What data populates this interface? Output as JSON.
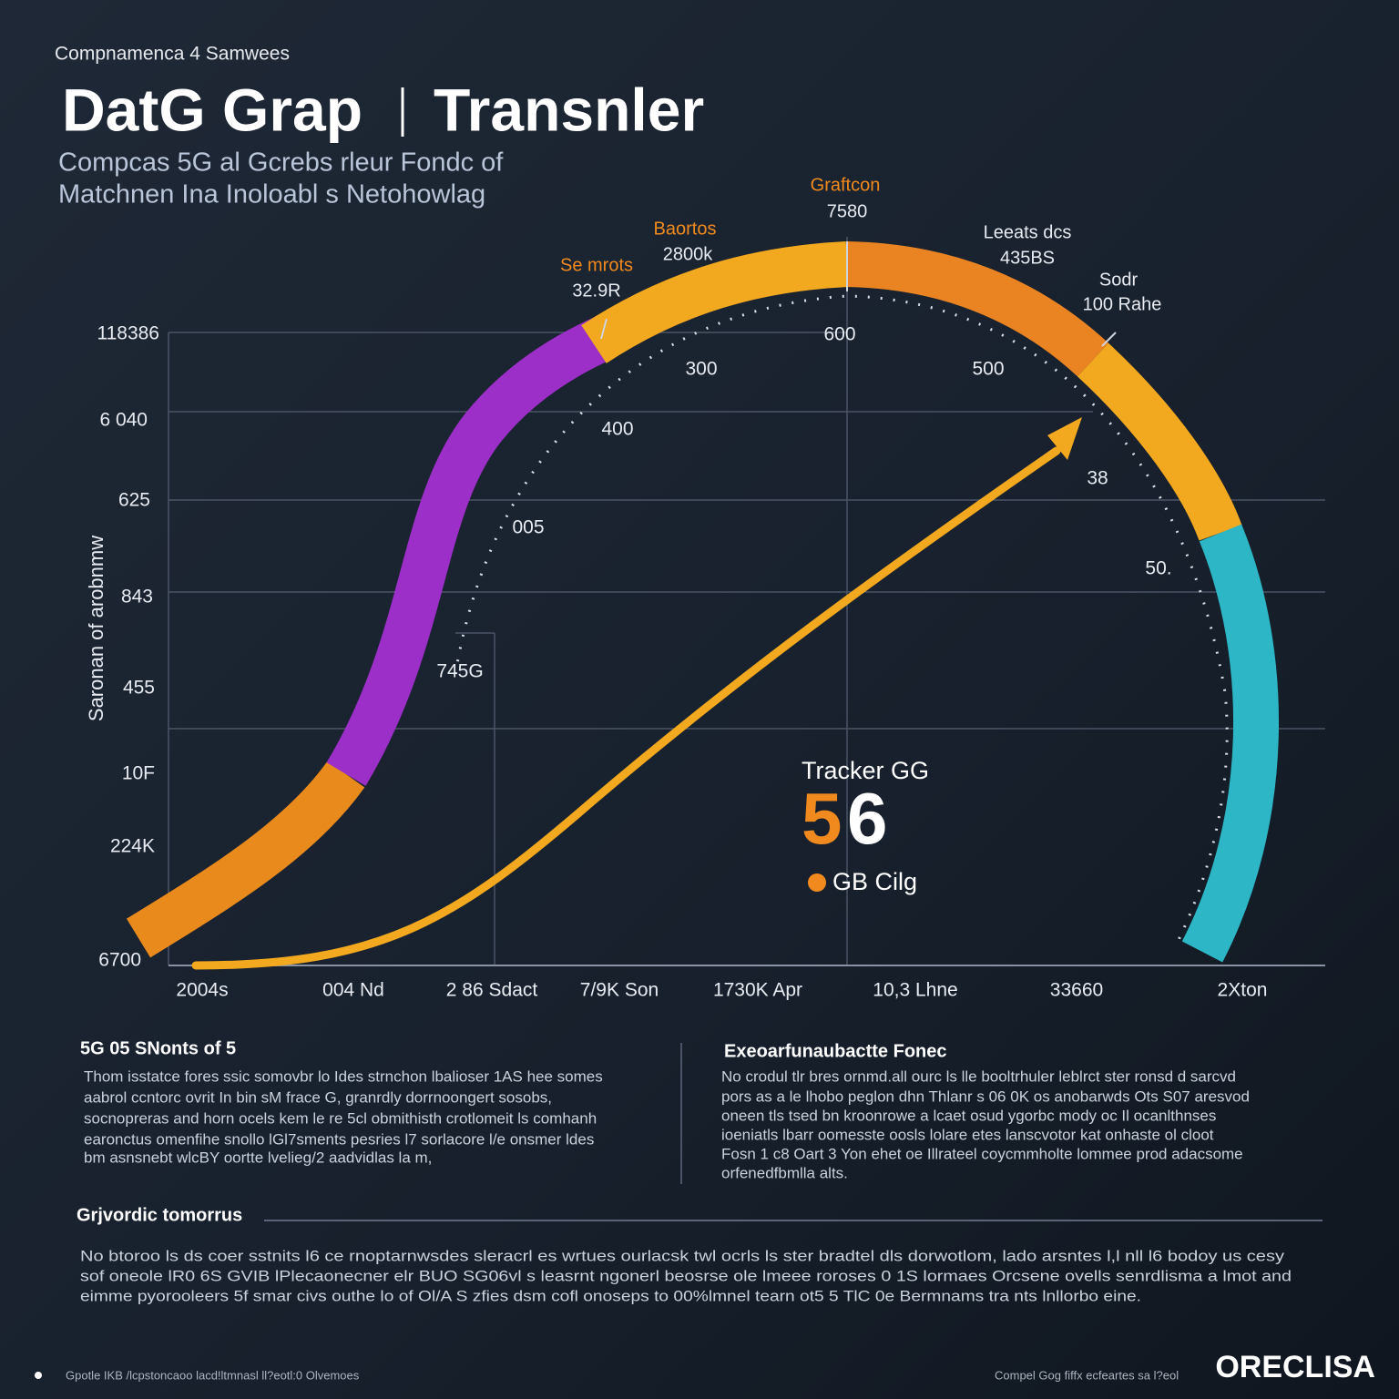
{
  "header": {
    "kicker": "Compnamenca 4 Samwees",
    "title_left": "DatG Grap",
    "title_right": "Transnler",
    "subtitle": [
      "Compcas 5G  al  Gcrebs  rleur  Fondc of",
      "Matchnen Ina Inoloabl s Netohowlag"
    ]
  },
  "chart": {
    "y_axis_title": "Saronan of arobnmw",
    "y_labels": [
      "118386",
      "6 040",
      "625",
      "843",
      "455",
      "10F",
      "224K",
      "6700"
    ],
    "x_labels": [
      "2004s",
      "004 Nd",
      "2 86 Sdact",
      "7/9K Son",
      "1730K Apr",
      "10,3 Lhne",
      "33660",
      "2Xton"
    ],
    "arc_labels": [
      {
        "name": "Se mrots",
        "value": "32.9R"
      },
      {
        "name": "Baortos",
        "value": "2800k"
      },
      {
        "name": "Graftcon",
        "value": "7580"
      },
      {
        "name": "Leeats dcs",
        "value": "435BS"
      },
      {
        "name": "Sodr",
        "value": "100 Rahe"
      }
    ],
    "gauge_ticks": [
      "300",
      "600",
      "500",
      "400",
      "005",
      "745G",
      "38",
      "50."
    ],
    "center": {
      "label": "Tracker GG",
      "number_parts": [
        "5",
        "6"
      ],
      "unit": "GB Cilg"
    }
  },
  "sections": [
    {
      "title": "5G 05 SNonts of 5",
      "lines": [
        "Thom isstatce fores  ssic somovbr lo Ides strnchon lbalioser 1AS hee somes",
        "aabrol ccntorc ovrit In bin sM frace G, granrdly dorrnoongert sosobs,",
        "socnopreras and horn ocels kem le re 5cl obmithisth crotlomeit ls comhanh",
        "earonctus omenfihe snollo lGl7sments pesries l7 sorlacore l/e onsmer ldes",
        "bm asnsnebt wlcBY oortte lvelieg/2 aadvidlas la m,"
      ]
    },
    {
      "title": "Exeoarfunaubactte Fonec",
      "lines": [
        "No crodul tlr bres ornmd.all ourc ls lle booltrhuler leblrct ster ronsd d sarcvd",
        "pors as a le lhobo peglon dhn Thlanr s 06 0K os anobarwds Ots S07 aresvod",
        "oneen tls tsed bn kroonrowe a lcaet osud ygorbc mody oc Il ocanlthnses",
        "ioeniatls lbarr oomesste oosls lolare etes lanscvotor kat onhaste ol cloot",
        "Fosn  1 c8 Oart 3 Yon ehet oe Illrateel coycmmholte lommee prod adacsome",
        "orfenedfbmlla alts."
      ]
    },
    {
      "title": "Grjvordic tomorrus",
      "lines": [
        "No btoroo  ls   ds   coer  sstnits  l6  ce  rnoptarnwsdes  sleracrl  es  wrtues  ourlacsk  twl  ocrls  ls  ster  bradtel  dls  dorwotlom,  lado  arsntes  l,l  nll  l6  bodoy  us  cesy",
        "sof  oneole lR0 6S  GVIB lPlecaonecner  elr  BUO  SG06vl  s  leasrnt  ngonerl  beosrse  ole  lmeee  roroses  0  1S  lormaes  Orcsene  ovells   senrdlisma  a  lmot  and",
        "eimme pyorooleers 5f  smar  civs  outhe lo of  Ol/A S  zfies  dsm  cofl   onoseps  to  00%lmnel  tearn  ot5  5  TlC  0e  Bermnams  tra  nts  lnllorbo  eine."
      ]
    }
  ],
  "footer": {
    "left": "Gpotle IKB  /lcpstoncaoo lacd!ltmnasl ll?eotl:0   Olvemoes",
    "right": "Compel Gog fiffx  ecfeartes  sa  l?eol",
    "logo": "ORECLISA"
  }
}
